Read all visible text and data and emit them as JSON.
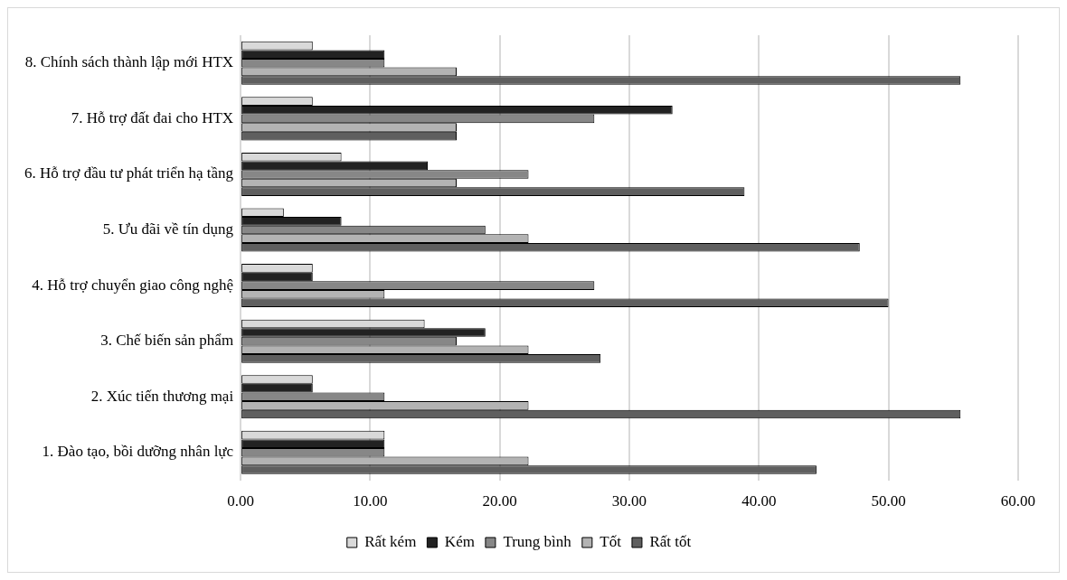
{
  "chart_data": {
    "type": "bar",
    "orientation": "horizontal",
    "categories": [
      "8. Chính sách thành lập mới HTX",
      "7. Hỗ trợ đất đai cho HTX",
      "6. Hỗ trợ đầu tư phát triển hạ tầng",
      "5. Ưu đãi về tín dụng",
      "4. Hỗ trợ chuyển giao công nghệ",
      "3. Chế biến sản phẩm",
      "2. Xúc tiến thương mại",
      "1. Đào tạo, bồi dưỡng nhân lực"
    ],
    "series": [
      {
        "name": "Rất kém",
        "color": "#d9d9d9",
        "values": [
          5.56,
          5.56,
          7.78,
          3.33,
          5.56,
          14.2,
          5.56,
          11.11
        ]
      },
      {
        "name": "Kém",
        "color": "#222222",
        "values": [
          11.11,
          33.33,
          14.44,
          7.78,
          5.56,
          18.89,
          5.56,
          11.11
        ]
      },
      {
        "name": "Trung bình",
        "color": "#878787",
        "values": [
          11.11,
          27.3,
          22.22,
          18.89,
          27.3,
          16.67,
          11.11,
          11.11
        ]
      },
      {
        "name": "Tốt",
        "color": "#b3b3b3",
        "values": [
          16.67,
          16.67,
          16.67,
          22.22,
          11.11,
          22.22,
          22.22,
          22.22
        ]
      },
      {
        "name": "Rất tốt",
        "color": "#5f5f5f",
        "values": [
          55.56,
          16.67,
          38.89,
          47.78,
          50,
          27.78,
          55.56,
          44.44
        ]
      }
    ],
    "xlim": [
      0,
      60
    ],
    "xticks": [
      {
        "value": 0,
        "label": "0.00"
      },
      {
        "value": 10,
        "label": "10.00"
      },
      {
        "value": 20,
        "label": "20.00"
      },
      {
        "value": 30,
        "label": "30.00"
      },
      {
        "value": 40,
        "label": "40.00"
      },
      {
        "value": 50,
        "label": "50.00"
      },
      {
        "value": 60,
        "label": "60.00"
      }
    ],
    "grid": "x",
    "legend": "bottom"
  }
}
